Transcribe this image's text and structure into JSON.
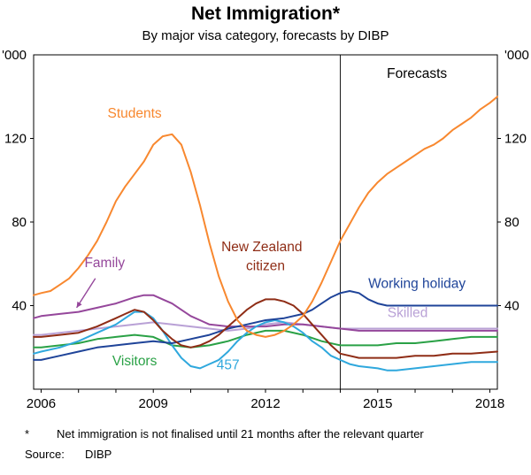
{
  "header": {
    "title": "Net Immigration*",
    "subtitle": "By major visa category, forecasts by DIBP"
  },
  "footnotes": {
    "symbol": "*",
    "note": "Net immigration is not finalised until 21 months after the relevant quarter",
    "source_label": "Source:",
    "source_value": "DIBP"
  },
  "chart_data": {
    "type": "line",
    "title": "Net Immigration*",
    "subtitle": "By major visa category, forecasts by DIBP",
    "unit_label": "'000",
    "x_range": [
      2005.8,
      2018.2
    ],
    "y_range": [
      0,
      160
    ],
    "y_ticks": [
      40,
      80,
      120
    ],
    "x_ticks": [
      2006,
      2007,
      2008,
      2009,
      2010,
      2011,
      2012,
      2013,
      2014,
      2015,
      2016,
      2017,
      2018
    ],
    "x_tick_labels": [
      2006,
      2009,
      2012,
      2015,
      2018
    ],
    "forecast_divider_x": 2014,
    "series": [
      {
        "id": "skilled",
        "name": "Skilled",
        "color": "#b9a1d6",
        "points": [
          [
            2005.8,
            26
          ],
          [
            2006,
            26
          ],
          [
            2006.5,
            27
          ],
          [
            2007,
            28
          ],
          [
            2007.5,
            29
          ],
          [
            2008,
            30
          ],
          [
            2008.5,
            31
          ],
          [
            2009,
            32
          ],
          [
            2009.5,
            31
          ],
          [
            2010,
            30
          ],
          [
            2010.5,
            29
          ],
          [
            2011,
            28
          ],
          [
            2011.5,
            29
          ],
          [
            2012,
            31
          ],
          [
            2012.5,
            32
          ],
          [
            2013,
            31
          ],
          [
            2013.5,
            30
          ],
          [
            2014,
            29
          ],
          [
            2015,
            29
          ],
          [
            2016,
            29
          ],
          [
            2017,
            29
          ],
          [
            2018.2,
            29
          ]
        ]
      },
      {
        "id": "family",
        "name": "Family",
        "color": "#95479b",
        "points": [
          [
            2005.8,
            34
          ],
          [
            2006,
            35
          ],
          [
            2006.5,
            36
          ],
          [
            2007,
            37
          ],
          [
            2007.5,
            39
          ],
          [
            2008,
            41
          ],
          [
            2008.5,
            44
          ],
          [
            2008.75,
            45
          ],
          [
            2009,
            45
          ],
          [
            2009.25,
            43
          ],
          [
            2009.5,
            41
          ],
          [
            2009.75,
            38
          ],
          [
            2010,
            35
          ],
          [
            2010.25,
            33
          ],
          [
            2010.5,
            31
          ],
          [
            2011,
            30
          ],
          [
            2011.5,
            30
          ],
          [
            2012,
            30
          ],
          [
            2012.5,
            31
          ],
          [
            2013,
            31
          ],
          [
            2013.5,
            30
          ],
          [
            2014,
            29
          ],
          [
            2014.5,
            28
          ],
          [
            2015,
            28
          ],
          [
            2016,
            28
          ],
          [
            2017,
            28
          ],
          [
            2018.2,
            28
          ]
        ]
      },
      {
        "id": "visitors",
        "name": "Visitors",
        "color": "#2aa146",
        "points": [
          [
            2005.8,
            20
          ],
          [
            2006,
            20
          ],
          [
            2006.5,
            21
          ],
          [
            2007,
            22
          ],
          [
            2007.5,
            24
          ],
          [
            2008,
            25
          ],
          [
            2008.5,
            26
          ],
          [
            2009,
            25
          ],
          [
            2009.5,
            21
          ],
          [
            2010,
            20
          ],
          [
            2010.5,
            21
          ],
          [
            2011,
            23
          ],
          [
            2011.5,
            26
          ],
          [
            2012,
            28
          ],
          [
            2012.5,
            28
          ],
          [
            2013,
            26
          ],
          [
            2013.5,
            23
          ],
          [
            2014,
            21
          ],
          [
            2014.5,
            21
          ],
          [
            2015,
            21
          ],
          [
            2015.5,
            22
          ],
          [
            2016,
            22
          ],
          [
            2016.5,
            23
          ],
          [
            2017,
            24
          ],
          [
            2017.5,
            25
          ],
          [
            2018.2,
            25
          ]
        ]
      },
      {
        "id": "457",
        "name": "457",
        "color": "#2fa8dd",
        "points": [
          [
            2005.8,
            17
          ],
          [
            2006,
            18
          ],
          [
            2006.5,
            20
          ],
          [
            2007,
            23
          ],
          [
            2007.5,
            27
          ],
          [
            2008,
            31
          ],
          [
            2008.25,
            34
          ],
          [
            2008.5,
            37
          ],
          [
            2008.75,
            37
          ],
          [
            2009,
            34
          ],
          [
            2009.25,
            28
          ],
          [
            2009.5,
            21
          ],
          [
            2009.75,
            15
          ],
          [
            2010,
            11
          ],
          [
            2010.25,
            10
          ],
          [
            2010.5,
            12
          ],
          [
            2010.75,
            14
          ],
          [
            2011,
            18
          ],
          [
            2011.25,
            23
          ],
          [
            2011.5,
            27
          ],
          [
            2011.75,
            30
          ],
          [
            2012,
            32
          ],
          [
            2012.25,
            33
          ],
          [
            2012.5,
            32
          ],
          [
            2012.75,
            30
          ],
          [
            2013,
            27
          ],
          [
            2013.25,
            23
          ],
          [
            2013.5,
            20
          ],
          [
            2013.75,
            16
          ],
          [
            2014,
            14
          ],
          [
            2014.25,
            12
          ],
          [
            2014.5,
            11
          ],
          [
            2015,
            10
          ],
          [
            2015.25,
            9
          ],
          [
            2015.5,
            9
          ],
          [
            2016,
            10
          ],
          [
            2016.5,
            11
          ],
          [
            2017,
            12
          ],
          [
            2017.5,
            13
          ],
          [
            2018.2,
            13
          ]
        ]
      },
      {
        "id": "working-holiday",
        "name": "Working holiday",
        "color": "#1f4499",
        "points": [
          [
            2005.8,
            14
          ],
          [
            2006,
            14
          ],
          [
            2006.5,
            16
          ],
          [
            2007,
            18
          ],
          [
            2007.5,
            20
          ],
          [
            2008,
            21
          ],
          [
            2008.5,
            22
          ],
          [
            2009,
            23
          ],
          [
            2009.5,
            22
          ],
          [
            2010,
            24
          ],
          [
            2010.5,
            26
          ],
          [
            2011,
            29
          ],
          [
            2011.5,
            31
          ],
          [
            2012,
            33
          ],
          [
            2012.5,
            34
          ],
          [
            2013,
            36
          ],
          [
            2013.25,
            38
          ],
          [
            2013.5,
            41
          ],
          [
            2013.75,
            44
          ],
          [
            2014,
            46
          ],
          [
            2014.25,
            47
          ],
          [
            2014.5,
            46
          ],
          [
            2014.75,
            43
          ],
          [
            2015,
            41
          ],
          [
            2015.25,
            40
          ],
          [
            2015.5,
            40
          ],
          [
            2016,
            40
          ],
          [
            2017,
            40
          ],
          [
            2018.2,
            40
          ]
        ]
      },
      {
        "id": "nz-citizen",
        "name": "New Zealand citizen",
        "color": "#8f2d16",
        "points": [
          [
            2005.8,
            25
          ],
          [
            2006,
            25
          ],
          [
            2006.5,
            26
          ],
          [
            2007,
            27
          ],
          [
            2007.5,
            30
          ],
          [
            2008,
            34
          ],
          [
            2008.25,
            36
          ],
          [
            2008.5,
            38
          ],
          [
            2008.75,
            37
          ],
          [
            2009,
            33
          ],
          [
            2009.25,
            28
          ],
          [
            2009.5,
            24
          ],
          [
            2009.75,
            21
          ],
          [
            2010,
            20
          ],
          [
            2010.25,
            21
          ],
          [
            2010.5,
            23
          ],
          [
            2010.75,
            26
          ],
          [
            2011,
            30
          ],
          [
            2011.25,
            34
          ],
          [
            2011.5,
            38
          ],
          [
            2011.75,
            41
          ],
          [
            2012,
            43
          ],
          [
            2012.25,
            43
          ],
          [
            2012.5,
            42
          ],
          [
            2012.75,
            40
          ],
          [
            2013,
            36
          ],
          [
            2013.25,
            31
          ],
          [
            2013.5,
            26
          ],
          [
            2013.75,
            21
          ],
          [
            2014,
            17
          ],
          [
            2014.5,
            15
          ],
          [
            2015,
            15
          ],
          [
            2015.5,
            15
          ],
          [
            2016,
            16
          ],
          [
            2016.5,
            16
          ],
          [
            2017,
            17
          ],
          [
            2017.5,
            17
          ],
          [
            2018.2,
            18
          ]
        ]
      },
      {
        "id": "students",
        "name": "Students",
        "color": "#f8882f",
        "points": [
          [
            2005.8,
            45
          ],
          [
            2006,
            46
          ],
          [
            2006.25,
            47
          ],
          [
            2006.5,
            50
          ],
          [
            2006.75,
            53
          ],
          [
            2007,
            58
          ],
          [
            2007.25,
            64
          ],
          [
            2007.5,
            71
          ],
          [
            2007.75,
            80
          ],
          [
            2008,
            90
          ],
          [
            2008.25,
            97
          ],
          [
            2008.5,
            103
          ],
          [
            2008.75,
            109
          ],
          [
            2009,
            117
          ],
          [
            2009.25,
            121
          ],
          [
            2009.5,
            122
          ],
          [
            2009.75,
            117
          ],
          [
            2010,
            104
          ],
          [
            2010.25,
            88
          ],
          [
            2010.5,
            70
          ],
          [
            2010.75,
            54
          ],
          [
            2011,
            42
          ],
          [
            2011.25,
            33
          ],
          [
            2011.5,
            28
          ],
          [
            2011.75,
            26
          ],
          [
            2012,
            25
          ],
          [
            2012.25,
            26
          ],
          [
            2012.5,
            28
          ],
          [
            2012.75,
            31
          ],
          [
            2013,
            35
          ],
          [
            2013.25,
            42
          ],
          [
            2013.5,
            51
          ],
          [
            2013.75,
            61
          ],
          [
            2014,
            71
          ],
          [
            2014.25,
            79
          ],
          [
            2014.5,
            87
          ],
          [
            2014.75,
            94
          ],
          [
            2015,
            99
          ],
          [
            2015.25,
            103
          ],
          [
            2015.5,
            106
          ],
          [
            2015.75,
            109
          ],
          [
            2016,
            112
          ],
          [
            2016.25,
            115
          ],
          [
            2016.5,
            117
          ],
          [
            2016.75,
            120
          ],
          [
            2017,
            124
          ],
          [
            2017.25,
            127
          ],
          [
            2017.5,
            130
          ],
          [
            2017.75,
            134
          ],
          [
            2018,
            137
          ],
          [
            2018.2,
            140
          ]
        ]
      }
    ],
    "annotations": [
      {
        "id": "forecasts",
        "text": "Forecasts",
        "x": 2016.05,
        "y": 149,
        "color": "#000000"
      },
      {
        "id": "students",
        "text": "Students",
        "x": 2008.5,
        "y": 130,
        "color": "#f8882f"
      },
      {
        "id": "family",
        "text": "Family",
        "x": 2007.7,
        "y": 58.5,
        "color": "#95479b"
      },
      {
        "id": "nz-citizen-1",
        "text": "New Zealand",
        "x": 2011.9,
        "y": 66,
        "color": "#8f2d16"
      },
      {
        "id": "nz-citizen-2",
        "text": "citizen",
        "x": 2012.0,
        "y": 57,
        "color": "#8f2d16"
      },
      {
        "id": "working-holiday",
        "text": "Working holiday",
        "x": 2016.05,
        "y": 48.5,
        "color": "#1f4499"
      },
      {
        "id": "skilled",
        "text": "Skilled",
        "x": 2015.8,
        "y": 34.5,
        "color": "#b9a1d6"
      },
      {
        "id": "visitors",
        "text": "Visitors",
        "x": 2008.5,
        "y": 11.5,
        "color": "#2aa146"
      },
      {
        "id": "457",
        "text": "457",
        "x": 2011.0,
        "y": 9.5,
        "color": "#2fa8dd"
      }
    ],
    "arrow": {
      "from": [
        2007.45,
        53
      ],
      "to": [
        2006.95,
        39
      ],
      "color": "#95479b"
    },
    "frame_color": "#000000"
  }
}
